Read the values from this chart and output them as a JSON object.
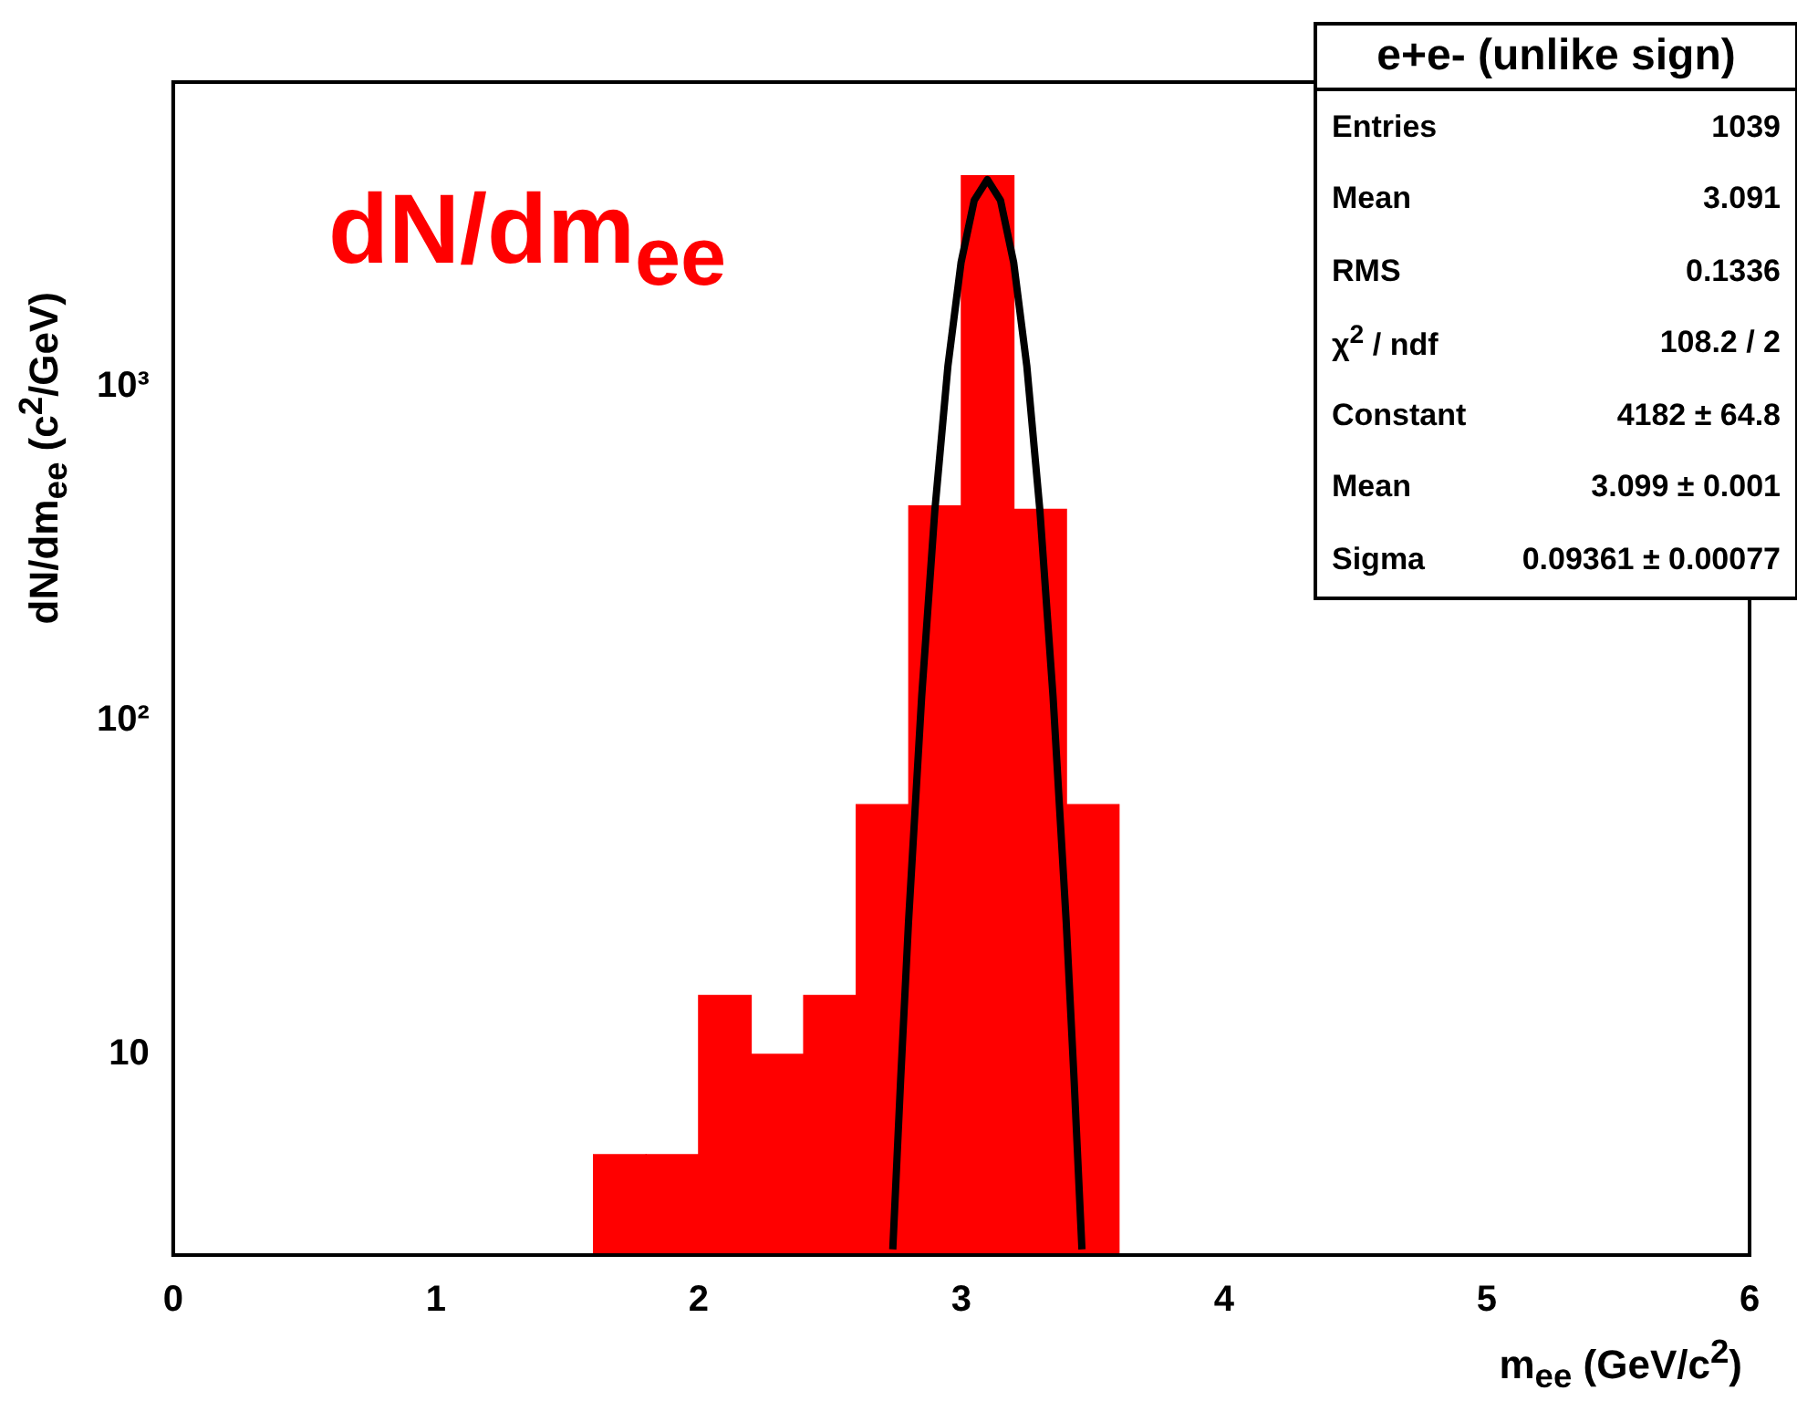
{
  "chart_data": {
    "type": "histogram",
    "title": "dN/dm$_{ee}$",
    "xlabel": "m$_{ee}$ (GeV/c$^{2}$)",
    "ylabel": "dN/dm$_{ee}$ (c$^{2}$/GeV)",
    "bins": [
      1.6,
      1.8,
      2.0,
      2.2,
      2.4,
      2.6,
      2.8,
      3.0,
      3.2,
      3.4,
      3.6
    ],
    "values": [
      5,
      5,
      15,
      10,
      15,
      56,
      440,
      4300,
      430,
      56
    ],
    "color": "#ff0000",
    "series": [
      {
        "type": "line",
        "color": "#000000",
        "x": [
          2.739,
          2.769,
          2.799,
          2.849,
          2.899,
          2.949,
          2.999,
          3.049,
          3.099,
          3.149,
          3.199,
          3.249,
          3.299,
          3.349,
          3.399,
          3.429,
          3.459
        ],
        "values": [
          2.6,
          8.4,
          25,
          118,
          426,
          1158,
          2364,
          3626,
          4182,
          3626,
          2364,
          1158,
          426,
          118,
          25,
          8.4,
          2.6
        ]
      }
    ],
    "xlim": [
      0,
      6
    ],
    "xticks": [
      0,
      1,
      2,
      3,
      4,
      5,
      6
    ],
    "ylim": [
      2.5,
      8200
    ],
    "yticks": [
      10,
      {
        "value": 100,
        "label": "10²"
      },
      {
        "value": 1000,
        "label": "10³"
      }
    ],
    "log": true,
    "grid": false,
    "legend": false,
    "annotations": [
      "e+e- (unlike sign)",
      "Entries",
      "1039",
      "Mean",
      "3.091",
      "RMS",
      "0.1336",
      "χ$^{2}$ / ndf",
      "108.2 / 2",
      "Constant",
      "4182 ± 64.8",
      "Mean",
      "3.099 ± 0.001",
      "Sigma",
      "0.09361 ± 0.00077"
    ]
  }
}
